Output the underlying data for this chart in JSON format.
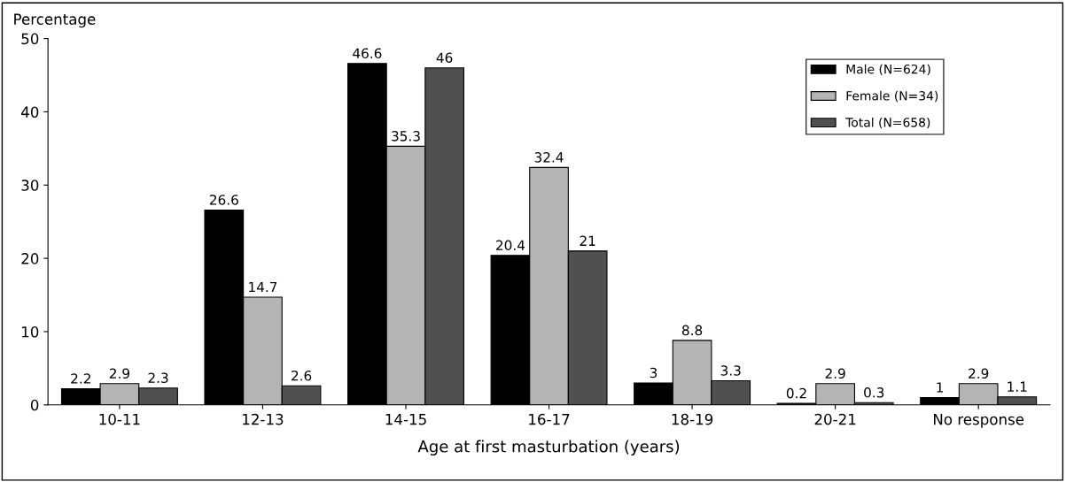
{
  "chart_data": {
    "type": "bar",
    "ylabel": "Percentage",
    "xlabel": "Age at first masturbation (years)",
    "categories": [
      "10-11",
      "12-13",
      "14-15",
      "16-17",
      "18-19",
      "20-21",
      "No response"
    ],
    "series": [
      {
        "name": "Male (N=624)",
        "color": "#000000",
        "values": [
          2.2,
          26.6,
          46.6,
          20.4,
          3,
          0.2,
          1
        ]
      },
      {
        "name": "Female (N=34)",
        "color": "#b4b4b4",
        "values": [
          2.9,
          14.7,
          35.3,
          32.4,
          8.8,
          2.9,
          2.9
        ]
      },
      {
        "name": "Total (N=658)",
        "color": "#505050",
        "values": [
          2.3,
          2.6,
          46,
          21,
          3.3,
          0.3,
          1.1
        ]
      }
    ],
    "ylim": [
      0,
      50
    ],
    "yticks": [
      0,
      10,
      20,
      30,
      40,
      50
    ],
    "data_labels": true,
    "legend": "top right",
    "grid": false
  }
}
